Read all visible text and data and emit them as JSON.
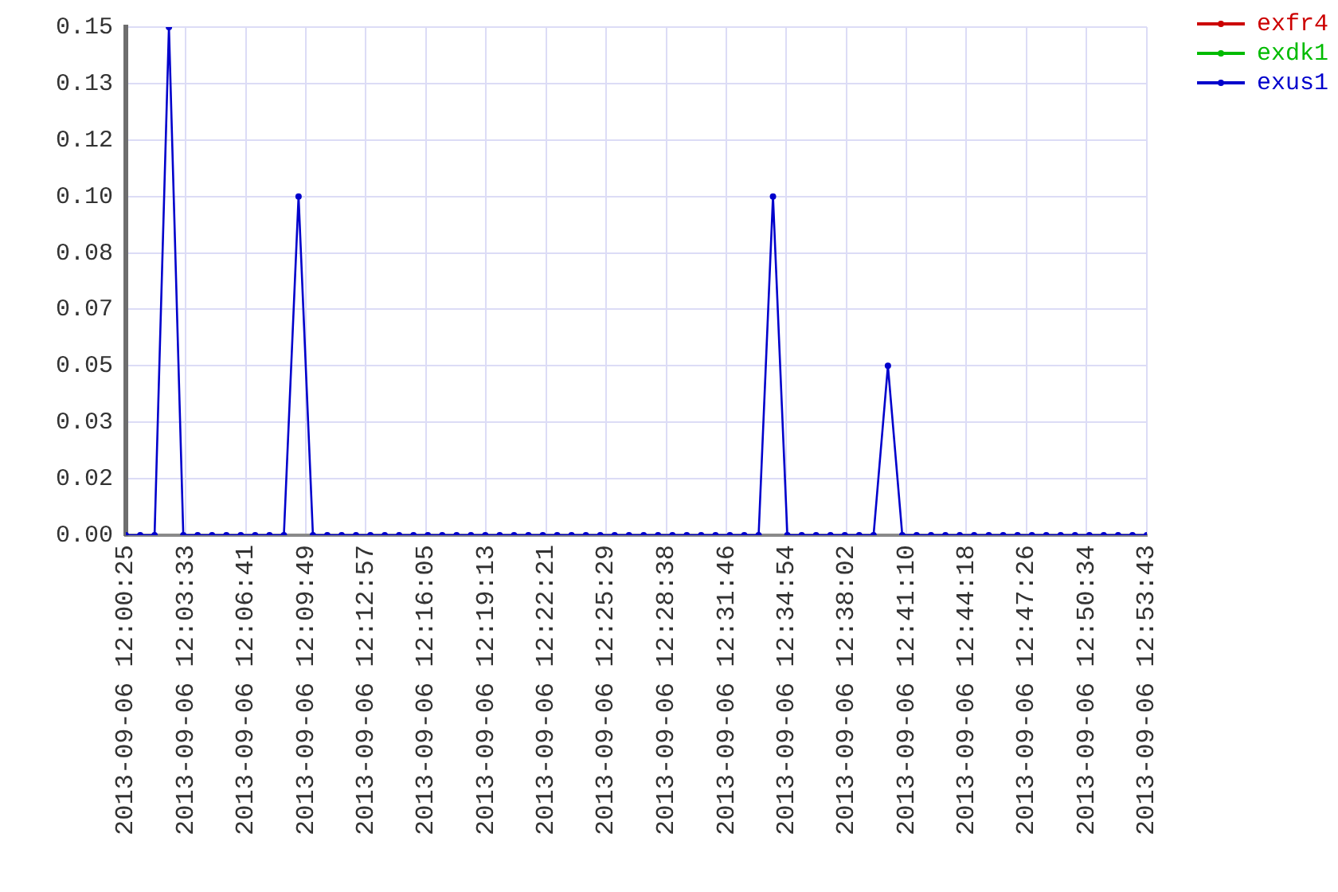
{
  "chart_data": {
    "type": "line",
    "x": [
      "2013-09-06T12:00:25",
      "2013-09-06T12:01:10",
      "2013-09-06T12:01:55",
      "2013-09-06T12:02:40",
      "2013-09-06T12:03:25",
      "2013-09-06T12:04:10",
      "2013-09-06T12:04:55",
      "2013-09-06T12:05:40",
      "2013-09-06T12:06:25",
      "2013-09-06T12:07:10",
      "2013-09-06T12:07:55",
      "2013-09-06T12:08:40",
      "2013-09-06T12:09:26",
      "2013-09-06T12:10:11",
      "2013-09-06T12:10:56",
      "2013-09-06T12:11:41",
      "2013-09-06T12:12:26",
      "2013-09-06T12:13:11",
      "2013-09-06T12:13:56",
      "2013-09-06T12:14:41",
      "2013-09-06T12:15:26",
      "2013-09-06T12:16:11",
      "2013-09-06T12:16:56",
      "2013-09-06T12:17:41",
      "2013-09-06T12:18:26",
      "2013-09-06T12:19:11",
      "2013-09-06T12:19:56",
      "2013-09-06T12:20:41",
      "2013-09-06T12:21:26",
      "2013-09-06T12:22:11",
      "2013-09-06T12:22:56",
      "2013-09-06T12:23:41",
      "2013-09-06T12:24:26",
      "2013-09-06T12:25:11",
      "2013-09-06T12:25:56",
      "2013-09-06T12:26:41",
      "2013-09-06T12:27:27",
      "2013-09-06T12:28:12",
      "2013-09-06T12:28:57",
      "2013-09-06T12:29:42",
      "2013-09-06T12:30:27",
      "2013-09-06T12:31:12",
      "2013-09-06T12:31:57",
      "2013-09-06T12:32:42",
      "2013-09-06T12:33:27",
      "2013-09-06T12:34:12",
      "2013-09-06T12:34:57",
      "2013-09-06T12:35:42",
      "2013-09-06T12:36:27",
      "2013-09-06T12:37:12",
      "2013-09-06T12:37:57",
      "2013-09-06T12:38:42",
      "2013-09-06T12:39:27",
      "2013-09-06T12:40:12",
      "2013-09-06T12:40:57",
      "2013-09-06T12:41:42",
      "2013-09-06T12:42:27",
      "2013-09-06T12:43:12",
      "2013-09-06T12:43:57",
      "2013-09-06T12:44:42",
      "2013-09-06T12:45:28",
      "2013-09-06T12:46:13",
      "2013-09-06T12:46:58",
      "2013-09-06T12:47:43",
      "2013-09-06T12:48:28",
      "2013-09-06T12:49:13",
      "2013-09-06T12:49:58",
      "2013-09-06T12:50:43",
      "2013-09-06T12:51:28",
      "2013-09-06T12:52:13",
      "2013-09-06T12:52:58",
      "2013-09-06T12:53:43"
    ],
    "series": [
      {
        "name": "exfr4",
        "color": "#cc0000",
        "values": [
          null,
          null,
          null,
          null,
          null,
          null,
          null,
          null,
          null,
          null,
          null,
          null,
          null,
          null,
          null,
          null,
          null,
          null,
          null,
          null,
          null,
          null,
          null,
          null,
          null,
          null,
          null,
          null,
          null,
          null,
          null,
          null,
          null,
          null,
          null,
          null,
          null,
          null,
          null,
          null,
          null,
          null,
          null,
          null,
          null,
          null,
          null,
          null,
          null,
          null,
          null,
          null,
          null,
          null,
          null,
          null,
          null,
          null,
          null,
          null,
          null,
          null,
          null,
          null,
          null,
          null,
          null,
          null,
          null,
          null,
          null,
          null
        ]
      },
      {
        "name": "exdk1",
        "color": "#00bb00",
        "values": [
          null,
          null,
          null,
          null,
          null,
          null,
          null,
          null,
          null,
          null,
          null,
          null,
          null,
          null,
          null,
          null,
          null,
          null,
          null,
          null,
          null,
          null,
          null,
          null,
          null,
          null,
          null,
          null,
          null,
          null,
          null,
          null,
          null,
          null,
          null,
          null,
          null,
          null,
          null,
          null,
          null,
          null,
          null,
          null,
          null,
          null,
          null,
          null,
          null,
          null,
          null,
          null,
          null,
          null,
          null,
          null,
          null,
          null,
          null,
          null,
          null,
          null,
          null,
          null,
          null,
          null,
          null,
          null,
          null,
          null,
          null,
          null
        ]
      },
      {
        "name": "exus1",
        "color": "#0000cc",
        "values": [
          0,
          0,
          0,
          0.15,
          0,
          0,
          0,
          0,
          0,
          0,
          0,
          0,
          0.1,
          0,
          0,
          0,
          0,
          0,
          0,
          0,
          0,
          0,
          0,
          0,
          0,
          0,
          0,
          0,
          0,
          0,
          0,
          0,
          0,
          0,
          0,
          0,
          0,
          0,
          0,
          0,
          0,
          0,
          0,
          0,
          0,
          0.1,
          0,
          0,
          0,
          0,
          0,
          0,
          0,
          0.05,
          0,
          0,
          0,
          0,
          0,
          0,
          0,
          0,
          0,
          0,
          0,
          0,
          0,
          0,
          0,
          0,
          0,
          0
        ]
      }
    ],
    "xlim": [
      "2013-09-06T12:00:25",
      "2013-09-06T12:53:43"
    ],
    "xticks": [
      {
        "value": "2013-09-06T12:00:25",
        "label": "2013-09-06 12:00:25"
      },
      {
        "value": "2013-09-06T12:03:33",
        "label": "2013-09-06 12:03:33"
      },
      {
        "value": "2013-09-06T12:06:41",
        "label": "2013-09-06 12:06:41"
      },
      {
        "value": "2013-09-06T12:09:49",
        "label": "2013-09-06 12:09:49"
      },
      {
        "value": "2013-09-06T12:12:57",
        "label": "2013-09-06 12:12:57"
      },
      {
        "value": "2013-09-06T12:16:05",
        "label": "2013-09-06 12:16:05"
      },
      {
        "value": "2013-09-06T12:19:13",
        "label": "2013-09-06 12:19:13"
      },
      {
        "value": "2013-09-06T12:22:21",
        "label": "2013-09-06 12:22:21"
      },
      {
        "value": "2013-09-06T12:25:29",
        "label": "2013-09-06 12:25:29"
      },
      {
        "value": "2013-09-06T12:28:38",
        "label": "2013-09-06 12:28:38"
      },
      {
        "value": "2013-09-06T12:31:46",
        "label": "2013-09-06 12:31:46"
      },
      {
        "value": "2013-09-06T12:34:54",
        "label": "2013-09-06 12:34:54"
      },
      {
        "value": "2013-09-06T12:38:02",
        "label": "2013-09-06 12:38:02"
      },
      {
        "value": "2013-09-06T12:41:10",
        "label": "2013-09-06 12:41:10"
      },
      {
        "value": "2013-09-06T12:44:18",
        "label": "2013-09-06 12:44:18"
      },
      {
        "value": "2013-09-06T12:47:26",
        "label": "2013-09-06 12:47:26"
      },
      {
        "value": "2013-09-06T12:50:34",
        "label": "2013-09-06 12:50:34"
      },
      {
        "value": "2013-09-06T12:53:43",
        "label": "2013-09-06 12:53:43"
      }
    ],
    "ylim": [
      0,
      0.15
    ],
    "yticks": [
      {
        "value": 0,
        "label": "0.00"
      },
      {
        "value": 0.0167,
        "label": "0.02"
      },
      {
        "value": 0.0333,
        "label": "0.03"
      },
      {
        "value": 0.05,
        "label": "0.05"
      },
      {
        "value": 0.0667,
        "label": "0.07"
      },
      {
        "value": 0.0833,
        "label": "0.08"
      },
      {
        "value": 0.1,
        "label": "0.10"
      },
      {
        "value": 0.1167,
        "label": "0.12"
      },
      {
        "value": 0.1333,
        "label": "0.13"
      },
      {
        "value": 0.15,
        "label": "0.15"
      }
    ],
    "grid": true,
    "legend": "top right",
    "marker": "circle",
    "line_style": "solid"
  }
}
